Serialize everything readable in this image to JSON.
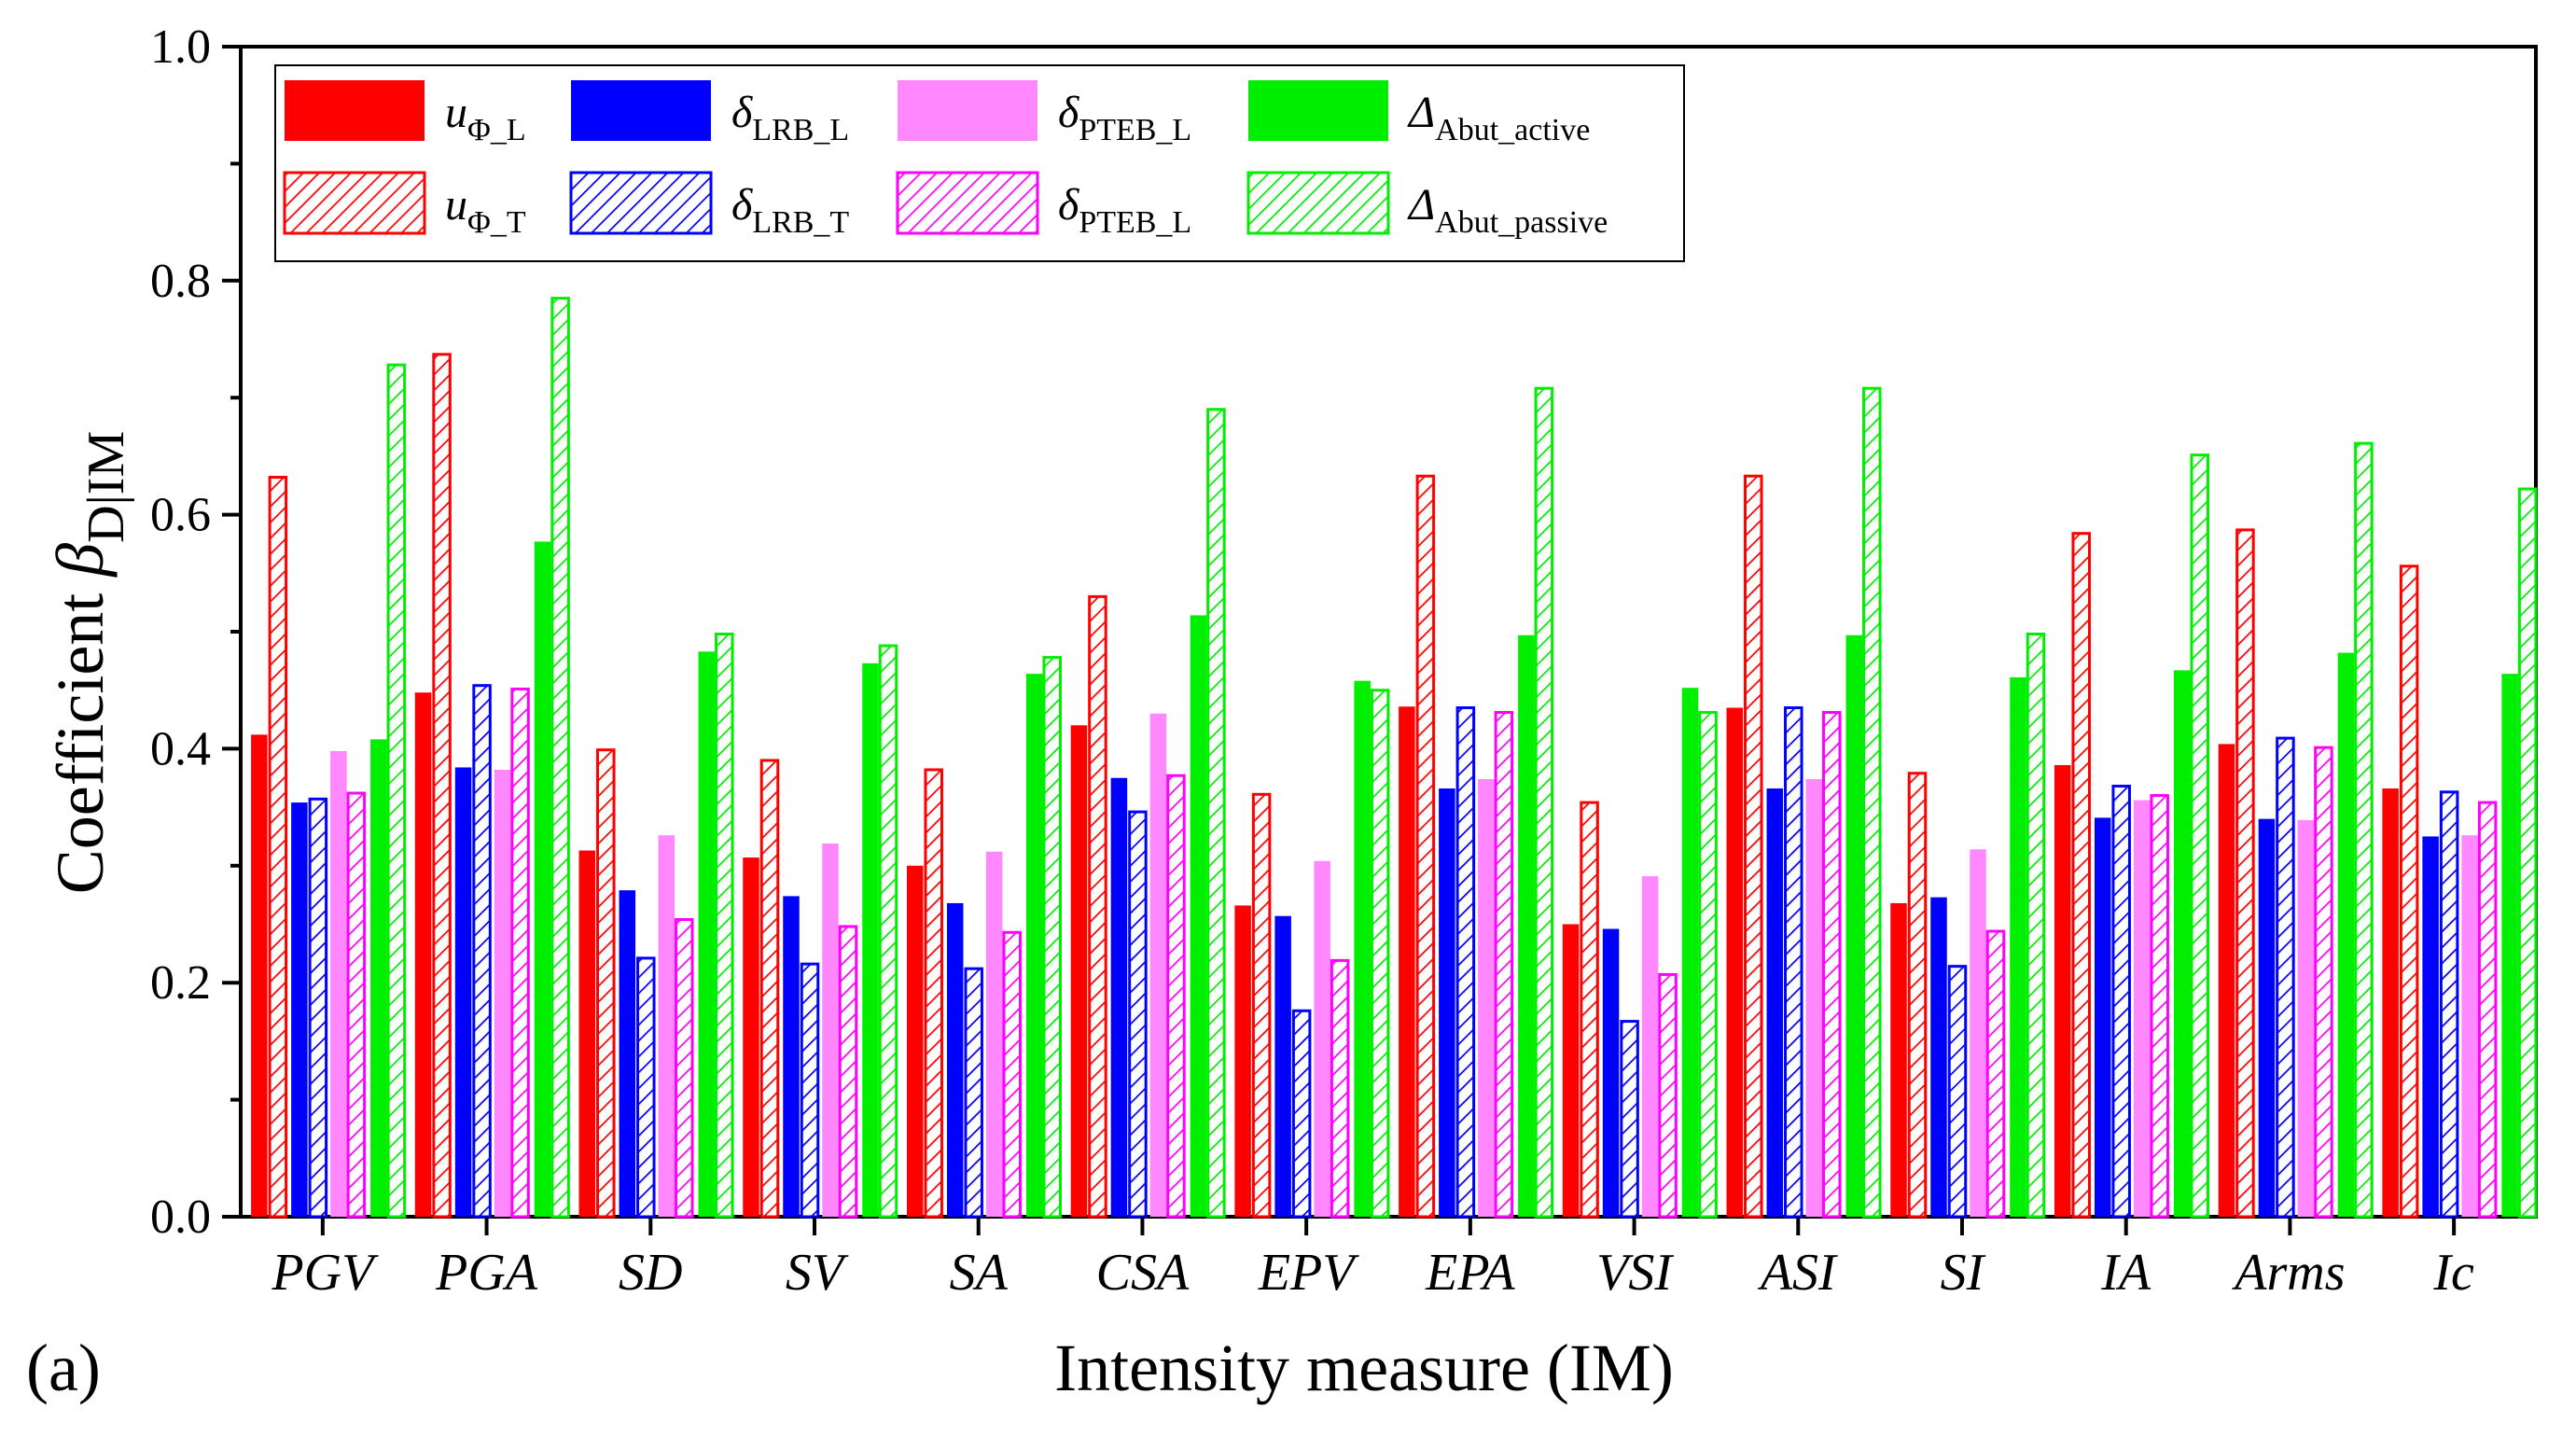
{
  "chart_data": {
    "type": "bar",
    "panel_label": "(a)",
    "xlabel": "Intensity measure (IM)",
    "ylabel": {
      "prefix": "Coefficient ",
      "symbol": "β",
      "subscript": "D|IM"
    },
    "ylim": [
      0.0,
      1.0
    ],
    "yticks": [
      "0.0",
      "0.2",
      "0.4",
      "0.6",
      "0.8",
      "1.0"
    ],
    "legend_position": "top-left",
    "categories": [
      "PGV",
      "PGA",
      "SD",
      "SV",
      "SA",
      "CSA",
      "EPV",
      "EPA",
      "VSI",
      "ASI",
      "SI",
      "IA",
      "Arms",
      "Ic"
    ],
    "series": [
      {
        "symbol": "u",
        "subscript": "Φ_L",
        "color": "#ff0000",
        "fill": "solid",
        "values": [
          0.412,
          0.448,
          0.313,
          0.307,
          0.3,
          0.42,
          0.266,
          0.436,
          0.25,
          0.435,
          0.268,
          0.386,
          0.404,
          0.366
        ]
      },
      {
        "symbol": "u",
        "subscript": "Φ_T",
        "color": "#ff0000",
        "fill": "hatched",
        "values": [
          0.632,
          0.737,
          0.399,
          0.39,
          0.382,
          0.53,
          0.361,
          0.633,
          0.354,
          0.633,
          0.379,
          0.584,
          0.587,
          0.556
        ]
      },
      {
        "symbol": "δ",
        "subscript": "LRB_L",
        "color": "#0000ff",
        "fill": "solid",
        "values": [
          0.354,
          0.384,
          0.279,
          0.274,
          0.268,
          0.375,
          0.257,
          0.366,
          0.246,
          0.366,
          0.273,
          0.341,
          0.34,
          0.325
        ]
      },
      {
        "symbol": "δ",
        "subscript": "LRB_T",
        "color": "#0000ff",
        "fill": "hatched",
        "values": [
          0.357,
          0.454,
          0.221,
          0.216,
          0.212,
          0.346,
          0.176,
          0.435,
          0.167,
          0.435,
          0.214,
          0.368,
          0.409,
          0.363
        ]
      },
      {
        "symbol": "δ",
        "subscript": "PTEB_L",
        "color": "#ff88ff",
        "fill": "solid",
        "values": [
          0.398,
          0.382,
          0.326,
          0.319,
          0.312,
          0.43,
          0.304,
          0.374,
          0.291,
          0.374,
          0.314,
          0.356,
          0.339,
          0.326
        ]
      },
      {
        "symbol": "δ",
        "subscript": "PTEB_L",
        "color": "#ff00ff",
        "fill": "hatched",
        "values": [
          0.362,
          0.451,
          0.254,
          0.248,
          0.243,
          0.377,
          0.219,
          0.431,
          0.207,
          0.431,
          0.244,
          0.36,
          0.401,
          0.354
        ]
      },
      {
        "symbol": "Δ",
        "subscript": "Abut_active",
        "color": "#00ee00",
        "fill": "solid",
        "values": [
          0.408,
          0.577,
          0.483,
          0.473,
          0.464,
          0.514,
          0.458,
          0.497,
          0.452,
          0.497,
          0.461,
          0.467,
          0.482,
          0.464
        ]
      },
      {
        "symbol": "Δ",
        "subscript": "Abut_passive",
        "color": "#00ee00",
        "fill": "hatched",
        "values": [
          0.728,
          0.785,
          0.498,
          0.488,
          0.478,
          0.69,
          0.45,
          0.708,
          0.431,
          0.708,
          0.498,
          0.651,
          0.661,
          0.622
        ]
      }
    ],
    "legend_order": [
      0,
      2,
      4,
      6,
      1,
      3,
      5,
      7
    ]
  }
}
